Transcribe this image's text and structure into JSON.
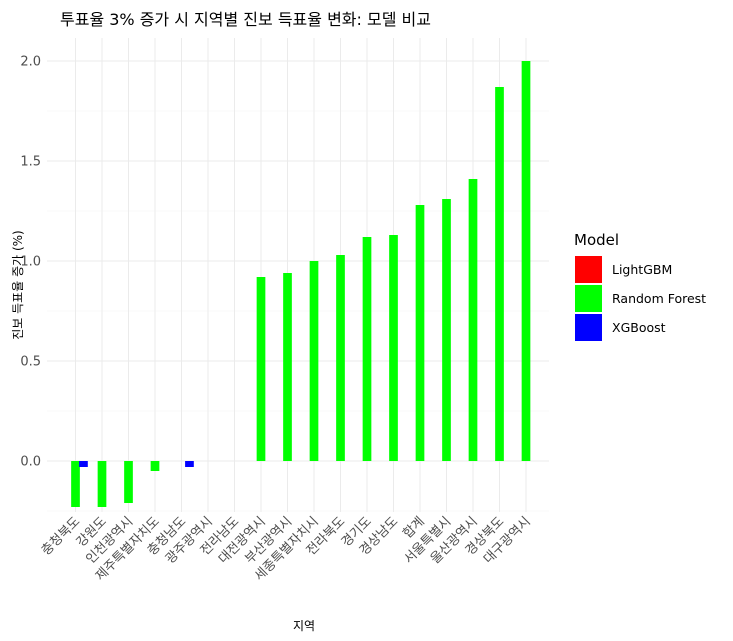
{
  "chart_data": {
    "type": "bar",
    "title": "투표율 3% 증가 시 지역별 진보 득표율 변화: 모델 비교",
    "xlabel": "지역",
    "ylabel": "진보 득표율 증가 (%)",
    "ylim": [
      -0.24,
      2.0
    ],
    "yticks": [
      0.0,
      0.5,
      1.0,
      1.5,
      2.0
    ],
    "ytick_labels": [
      "0.0",
      "0.5",
      "1.0",
      "1.5",
      "2.0"
    ],
    "grid": true,
    "legend": {
      "title": "Model",
      "position": "right",
      "entries": [
        {
          "name": "LightGBM",
          "color": "#ff0000"
        },
        {
          "name": "Random Forest",
          "color": "#00ff00"
        },
        {
          "name": "XGBoost",
          "color": "#0000ff"
        }
      ]
    },
    "categories": [
      "충청북도",
      "강원도",
      "인천광역시",
      "제주특별자치도",
      "충청남도",
      "광주광역시",
      "전라남도",
      "대전광역시",
      "부산광역시",
      "세종특별자치시",
      "전라북도",
      "경기도",
      "경상남도",
      "합계",
      "서울특별시",
      "울산광역시",
      "경상북도",
      "대구광역시"
    ],
    "series": [
      {
        "name": "LightGBM",
        "color": "#ff0000",
        "values": [
          0,
          0,
          0,
          0,
          0,
          0,
          0,
          0,
          0,
          0,
          0,
          0,
          0,
          0,
          0,
          0,
          0,
          0
        ]
      },
      {
        "name": "Random Forest",
        "color": "#00ff00",
        "values": [
          -0.23,
          -0.23,
          -0.21,
          -0.05,
          0,
          0,
          0,
          0.92,
          0.94,
          1.0,
          1.03,
          1.12,
          1.13,
          1.28,
          1.31,
          1.41,
          1.87,
          2.0
        ]
      },
      {
        "name": "XGBoost",
        "color": "#0000ff",
        "values": [
          -0.03,
          0,
          0,
          0,
          -0.03,
          0,
          0,
          0,
          0,
          0,
          0,
          0,
          0,
          0,
          0,
          0,
          0,
          0
        ]
      }
    ]
  }
}
